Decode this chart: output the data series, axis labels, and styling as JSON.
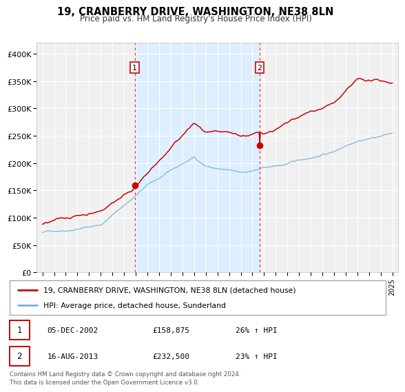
{
  "title": "19, CRANBERRY DRIVE, WASHINGTON, NE38 8LN",
  "subtitle": "Price paid vs. HM Land Registry's House Price Index (HPI)",
  "legend_line1": "19, CRANBERRY DRIVE, WASHINGTON, NE38 8LN (detached house)",
  "legend_line2": "HPI: Average price, detached house, Sunderland",
  "footnote1": "Contains HM Land Registry data © Crown copyright and database right 2024.",
  "footnote2": "This data is licensed under the Open Government Licence v3.0.",
  "sale1_label": "1",
  "sale1_date": "05-DEC-2002",
  "sale1_price": "£158,875",
  "sale1_hpi": "26% ↑ HPI",
  "sale2_label": "2",
  "sale2_date": "16-AUG-2013",
  "sale2_price": "£232,500",
  "sale2_hpi": "23% ↑ HPI",
  "sale1_x": 2002.92,
  "sale1_y": 158875,
  "sale2_x": 2013.62,
  "sale2_y": 232500,
  "vline1_x": 2002.92,
  "vline2_x": 2013.62,
  "red_color": "#cc0000",
  "blue_color": "#7ab0d4",
  "bg_shaded_color": "#ddeeff",
  "plot_bg_color": "#f0f0f0",
  "ylim_min": 0,
  "ylim_max": 420000,
  "xlim_min": 1994.5,
  "xlim_max": 2025.5,
  "yticks": [
    0,
    50000,
    100000,
    150000,
    200000,
    250000,
    300000,
    350000,
    400000
  ],
  "ytick_labels": [
    "£0",
    "£50K",
    "£100K",
    "£150K",
    "£200K",
    "£250K",
    "£300K",
    "£350K",
    "£400K"
  ],
  "xticks": [
    1995,
    1996,
    1997,
    1998,
    1999,
    2000,
    2001,
    2002,
    2003,
    2004,
    2005,
    2006,
    2007,
    2008,
    2009,
    2010,
    2011,
    2012,
    2013,
    2014,
    2015,
    2016,
    2017,
    2018,
    2019,
    2020,
    2021,
    2022,
    2023,
    2024,
    2025
  ]
}
